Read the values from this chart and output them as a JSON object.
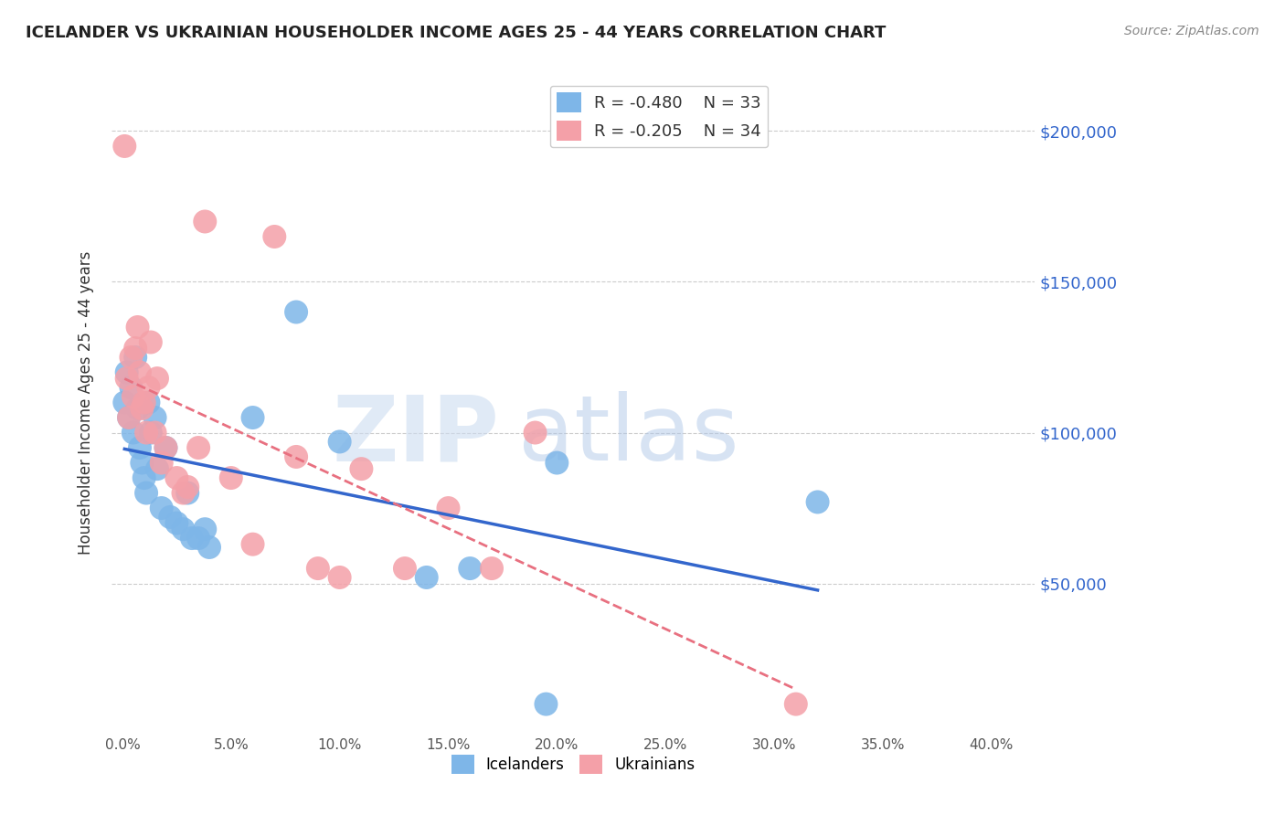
{
  "title": "ICELANDER VS UKRAINIAN HOUSEHOLDER INCOME AGES 25 - 44 YEARS CORRELATION CHART",
  "source": "Source: ZipAtlas.com",
  "ylabel": "Householder Income Ages 25 - 44 years",
  "xlabel_ticks": [
    "0.0%",
    "5.0%",
    "10.0%",
    "15.0%",
    "20.0%",
    "25.0%",
    "30.0%",
    "35.0%",
    "40.0%"
  ],
  "xlabel_vals": [
    0.0,
    0.05,
    0.1,
    0.15,
    0.2,
    0.25,
    0.3,
    0.35,
    0.4
  ],
  "ytick_labels": [
    "$50,000",
    "$100,000",
    "$150,000",
    "$200,000"
  ],
  "ytick_vals": [
    50000,
    100000,
    150000,
    200000
  ],
  "ylim": [
    0,
    220000
  ],
  "xlim": [
    -0.005,
    0.42
  ],
  "icelander_color": "#7EB6E8",
  "ukrainian_color": "#F4A0A8",
  "icelander_line_color": "#3366CC",
  "ukrainian_line_color": "#E87080",
  "R_icelander": -0.48,
  "N_icelander": 33,
  "R_ukrainian": -0.205,
  "N_ukrainian": 34,
  "watermark_zip": "ZIP",
  "watermark_atlas": "atlas",
  "icelander_x": [
    0.001,
    0.002,
    0.003,
    0.004,
    0.005,
    0.006,
    0.007,
    0.008,
    0.009,
    0.01,
    0.011,
    0.012,
    0.013,
    0.015,
    0.016,
    0.018,
    0.02,
    0.022,
    0.025,
    0.028,
    0.03,
    0.032,
    0.035,
    0.038,
    0.04,
    0.06,
    0.08,
    0.1,
    0.14,
    0.16,
    0.2,
    0.32,
    0.195
  ],
  "icelander_y": [
    110000,
    120000,
    105000,
    115000,
    100000,
    125000,
    108000,
    95000,
    90000,
    85000,
    80000,
    110000,
    100000,
    105000,
    88000,
    75000,
    95000,
    72000,
    70000,
    68000,
    80000,
    65000,
    65000,
    68000,
    62000,
    105000,
    140000,
    97000,
    52000,
    55000,
    90000,
    77000,
    10000
  ],
  "ukrainian_x": [
    0.001,
    0.002,
    0.003,
    0.004,
    0.005,
    0.006,
    0.007,
    0.008,
    0.009,
    0.01,
    0.011,
    0.012,
    0.013,
    0.015,
    0.016,
    0.018,
    0.02,
    0.025,
    0.028,
    0.03,
    0.035,
    0.038,
    0.05,
    0.06,
    0.07,
    0.08,
    0.09,
    0.1,
    0.11,
    0.13,
    0.15,
    0.17,
    0.19,
    0.31
  ],
  "ukrainian_y": [
    195000,
    118000,
    105000,
    125000,
    112000,
    128000,
    135000,
    120000,
    108000,
    110000,
    100000,
    115000,
    130000,
    100000,
    118000,
    90000,
    95000,
    85000,
    80000,
    82000,
    95000,
    170000,
    85000,
    63000,
    165000,
    92000,
    55000,
    52000,
    88000,
    55000,
    75000,
    55000,
    100000,
    10000
  ]
}
